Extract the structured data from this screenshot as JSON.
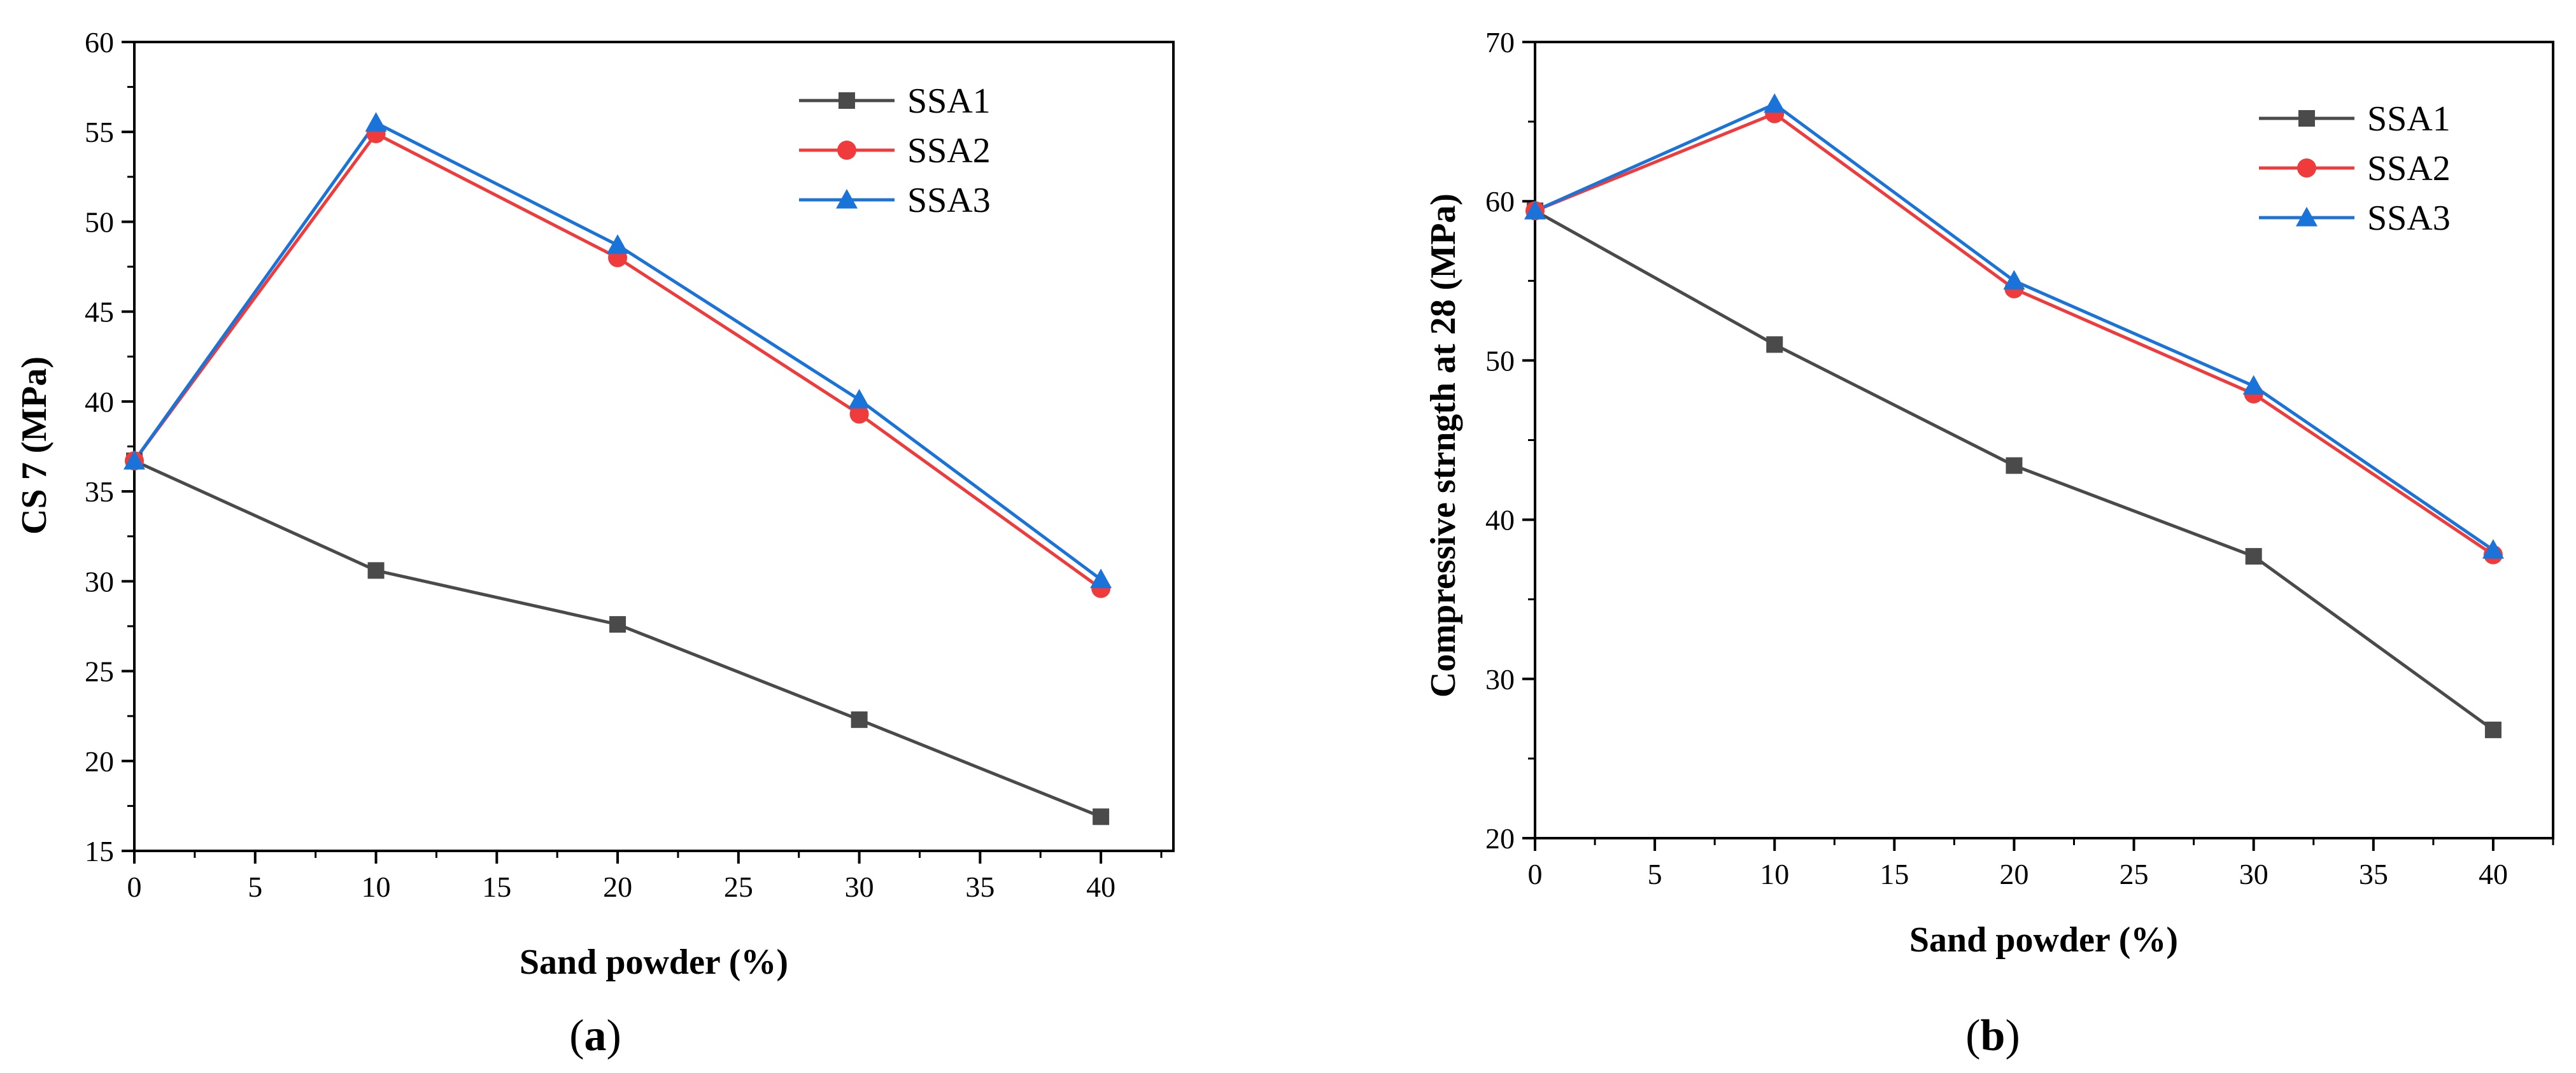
{
  "chart_data": [
    {
      "type": "line",
      "caption_letter": "a",
      "xlabel": "Sand powder (%)",
      "ylabel": "CS 7 (MPa)",
      "xlim": [
        0,
        43
      ],
      "ylim": [
        15,
        60
      ],
      "xticks": [
        0,
        5,
        10,
        15,
        20,
        25,
        30,
        35,
        40
      ],
      "yticks": [
        15,
        20,
        25,
        30,
        35,
        40,
        45,
        50,
        55,
        60
      ],
      "x": [
        0,
        10,
        20,
        30,
        40
      ],
      "series": [
        {
          "name": "SSA1",
          "color": "#4a4a4a",
          "marker": "square",
          "values": [
            36.7,
            30.6,
            27.6,
            22.3,
            16.9
          ]
        },
        {
          "name": "SSA2",
          "color": "#ef3b3b",
          "marker": "circle",
          "values": [
            36.7,
            54.9,
            48.0,
            39.3,
            29.6
          ]
        },
        {
          "name": "SSA3",
          "color": "#1a73d9",
          "marker": "triangle",
          "values": [
            36.7,
            55.5,
            48.7,
            40.1,
            30.1
          ]
        }
      ],
      "legend_position": "top-right",
      "grid": false
    },
    {
      "type": "line",
      "caption_letter": "b",
      "xlabel": "Sand powder (%)",
      "ylabel": "Compressive strngth at 28 (MPa)",
      "xlim": [
        0,
        42.5
      ],
      "ylim": [
        20,
        70
      ],
      "xticks": [
        0,
        5,
        10,
        15,
        20,
        25,
        30,
        35,
        40
      ],
      "yticks": [
        20,
        30,
        40,
        50,
        60,
        70
      ],
      "x": [
        0,
        10,
        20,
        30,
        40
      ],
      "series": [
        {
          "name": "SSA1",
          "color": "#4a4a4a",
          "marker": "square",
          "values": [
            59.4,
            51.0,
            43.4,
            37.7,
            26.8
          ]
        },
        {
          "name": "SSA2",
          "color": "#ef3b3b",
          "marker": "circle",
          "values": [
            59.4,
            65.5,
            54.5,
            47.9,
            37.8
          ]
        },
        {
          "name": "SSA3",
          "color": "#1a73d9",
          "marker": "triangle",
          "values": [
            59.4,
            66.1,
            55.0,
            48.4,
            38.1
          ]
        }
      ],
      "legend_position": "top-right",
      "grid": false
    }
  ]
}
